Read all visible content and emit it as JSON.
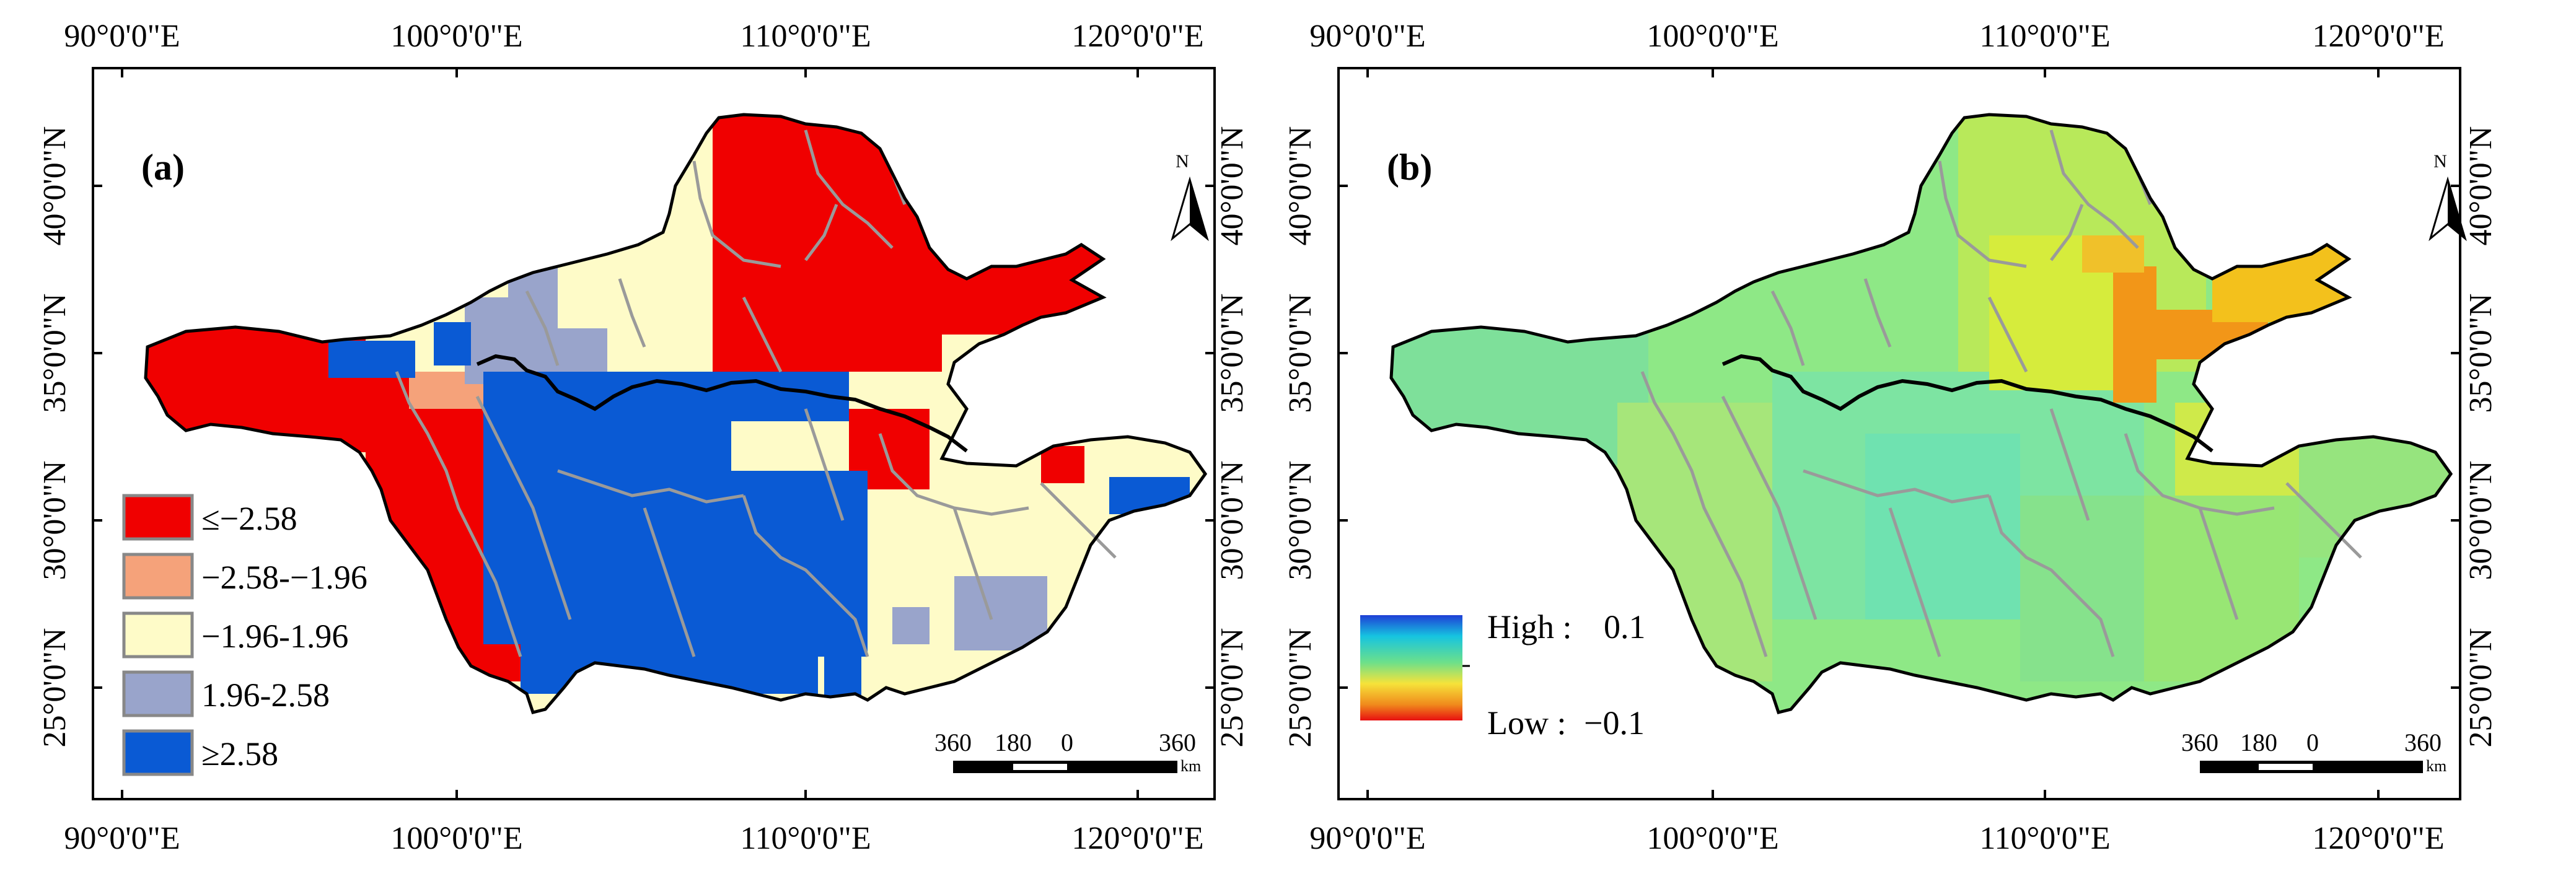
{
  "figure": {
    "panels": [
      {
        "label": "(a)",
        "lon_ticks": [
          "90°0'0\"E",
          "100°0'0\"E",
          "110°0'0\"E",
          "120°0'0\"E"
        ],
        "lat_ticks": [
          "40°0'0\"N",
          "35°0'0\"N",
          "30°0'0\"N",
          "25°0'0\"N"
        ],
        "north": "N",
        "scale": {
          "labels": [
            "360",
            "180",
            "0",
            "360"
          ],
          "unit": "km"
        },
        "legend": {
          "title": "",
          "classes": [
            {
              "label": "≤−2.58",
              "color": "#f00000"
            },
            {
              "label": "−2.58-−1.96",
              "color": "#f5a27a"
            },
            {
              "label": "−1.96-1.96",
              "color": "#fefbc8"
            },
            {
              "label": "1.96-2.58",
              "color": "#99a4cb"
            },
            {
              "label": "≥2.58",
              "color": "#0a5ad4"
            }
          ]
        }
      },
      {
        "label": "(b)",
        "lon_ticks": [
          "90°0'0\"E",
          "100°0'0\"E",
          "110°0'0\"E",
          "120°0'0\"E"
        ],
        "lat_ticks": [
          "40°0'0\"N",
          "35°0'0\"N",
          "30°0'0\"N",
          "25°0'0\"N"
        ],
        "north": "N",
        "scale": {
          "labels": [
            "360",
            "180",
            "0",
            "360"
          ],
          "unit": "km"
        },
        "legend": {
          "high_label": "High :",
          "high_value": "0.1",
          "low_label": "Low :",
          "low_value": "−0.1",
          "colors": [
            "#1f3fd6",
            "#16c4e0",
            "#6de08a",
            "#f6e33a",
            "#f08a1c",
            "#e81010"
          ]
        }
      }
    ],
    "fills": {
      "map_base_a": "#fefbc8",
      "map_base_b": "#86e58a",
      "boundary": "#000000",
      "subbasin": "#9a9a9a"
    }
  }
}
